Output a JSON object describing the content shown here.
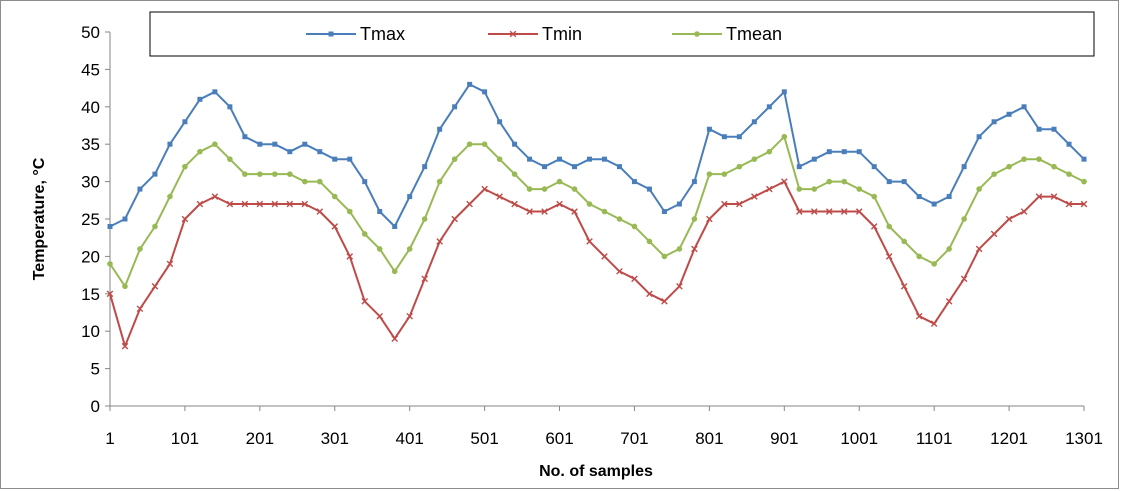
{
  "chart_data": {
    "type": "line",
    "title": "",
    "xlabel": "No. of samples",
    "ylabel": "Temperature, °C",
    "xlim": [
      1,
      1301
    ],
    "ylim": [
      0,
      50
    ],
    "x_ticks": [
      "1",
      "101",
      "201",
      "301",
      "401",
      "501",
      "601",
      "701",
      "801",
      "901",
      "1001",
      "1101",
      "1201",
      "1301"
    ],
    "y_ticks": [
      "0",
      "5",
      "10",
      "15",
      "20",
      "25",
      "30",
      "35",
      "40",
      "45",
      "50"
    ],
    "grid": false,
    "legend": "top",
    "x": [
      1,
      21,
      41,
      61,
      81,
      101,
      121,
      141,
      161,
      181,
      201,
      221,
      241,
      261,
      281,
      301,
      321,
      341,
      361,
      381,
      401,
      421,
      441,
      461,
      481,
      501,
      521,
      541,
      561,
      581,
      601,
      621,
      641,
      661,
      681,
      701,
      721,
      741,
      761,
      781,
      801,
      821,
      841,
      861,
      881,
      901,
      921,
      941,
      961,
      981,
      1001,
      1021,
      1041,
      1061,
      1081,
      1101,
      1121,
      1141,
      1161,
      1181,
      1201,
      1221,
      1241,
      1261,
      1281,
      1301
    ],
    "series": [
      {
        "name": "Tmax",
        "color": "#4a7ebb",
        "marker": "square",
        "values": [
          24,
          25,
          29,
          31,
          35,
          38,
          41,
          42,
          40,
          36,
          35,
          35,
          34,
          35,
          34,
          33,
          33,
          30,
          26,
          24,
          28,
          32,
          37,
          40,
          43,
          42,
          38,
          35,
          33,
          32,
          33,
          32,
          33,
          33,
          32,
          30,
          29,
          26,
          27,
          30,
          37,
          36,
          36,
          38,
          40,
          42,
          32,
          33,
          34,
          34,
          34,
          32,
          30,
          30,
          28,
          27,
          28,
          32,
          36,
          38,
          39,
          40,
          37,
          37,
          35,
          33
        ]
      },
      {
        "name": "Tmin",
        "color": "#be4b48",
        "marker": "x",
        "values": [
          15,
          8,
          13,
          16,
          19,
          25,
          27,
          28,
          27,
          27,
          27,
          27,
          27,
          27,
          26,
          24,
          20,
          14,
          12,
          9,
          12,
          17,
          22,
          25,
          27,
          29,
          28,
          27,
          26,
          26,
          27,
          26,
          22,
          20,
          18,
          17,
          15,
          14,
          16,
          21,
          25,
          27,
          27,
          28,
          29,
          30,
          26,
          26,
          26,
          26,
          26,
          24,
          20,
          16,
          12,
          11,
          14,
          17,
          21,
          23,
          25,
          26,
          28,
          28,
          27,
          27
        ]
      },
      {
        "name": "Tmean",
        "color": "#98b954",
        "marker": "circle",
        "values": [
          19,
          16,
          21,
          24,
          28,
          32,
          34,
          35,
          33,
          31,
          31,
          31,
          31,
          30,
          30,
          28,
          26,
          23,
          21,
          18,
          21,
          25,
          30,
          33,
          35,
          35,
          33,
          31,
          29,
          29,
          30,
          29,
          27,
          26,
          25,
          24,
          22,
          20,
          21,
          25,
          31,
          31,
          32,
          33,
          34,
          36,
          29,
          29,
          30,
          30,
          29,
          28,
          24,
          22,
          20,
          19,
          21,
          25,
          29,
          31,
          32,
          33,
          33,
          32,
          31,
          30
        ]
      }
    ]
  }
}
